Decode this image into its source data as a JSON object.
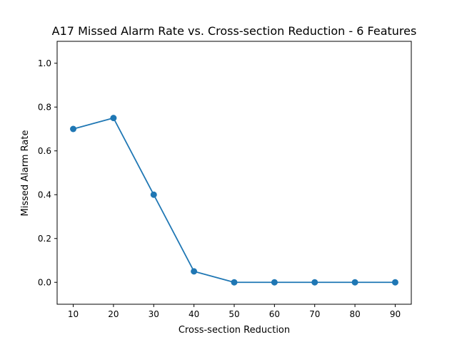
{
  "chart_data": {
    "type": "line",
    "title": "A17 Missed Alarm Rate vs. Cross-section Reduction - 6 Features",
    "xlabel": "Cross-section Reduction",
    "ylabel": "Missed Alarm Rate",
    "x": [
      10,
      20,
      30,
      40,
      50,
      60,
      70,
      80,
      90
    ],
    "series": [
      {
        "values": [
          0.7,
          0.75,
          0.4,
          0.05,
          0.0,
          0.0,
          0.0,
          0.0,
          0.0
        ]
      }
    ],
    "xlim": [
      6,
      94
    ],
    "ylim": [
      -0.1,
      1.1
    ],
    "xticks": [
      "10",
      "20",
      "30",
      "40",
      "50",
      "60",
      "70",
      "80",
      "90"
    ],
    "yticks": [
      "0.0",
      "0.2",
      "0.4",
      "0.6",
      "0.8",
      "1.0"
    ],
    "grid": false,
    "marker": "circle",
    "color": "#1f77b4"
  }
}
